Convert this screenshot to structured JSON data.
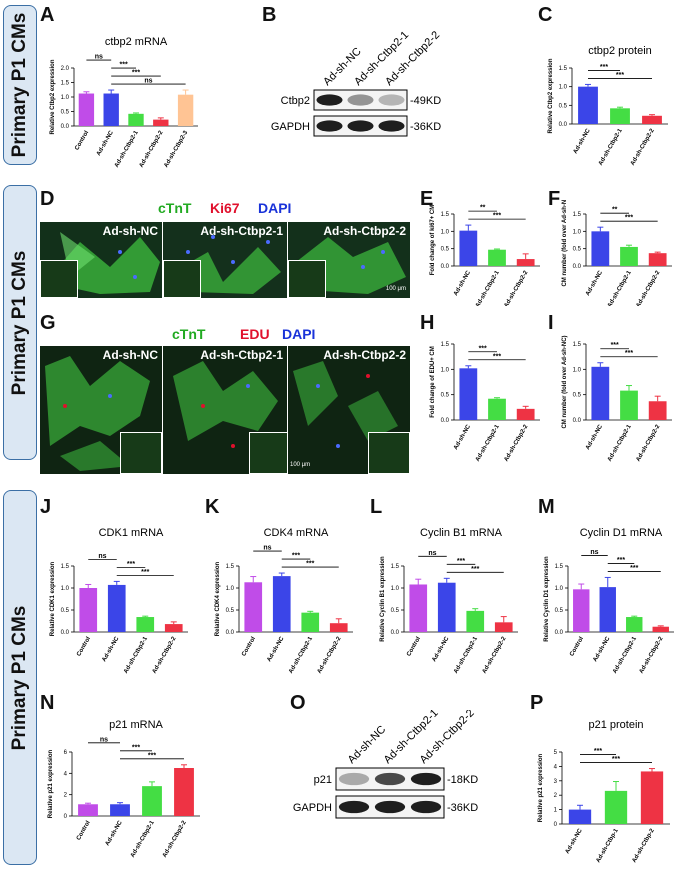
{
  "side_labels": [
    "Primary P1 CMs",
    "Primary P1 CMs",
    "Primary P1 CMs"
  ],
  "micrographs": {
    "D": {
      "legend": [
        {
          "text": "cTnT",
          "color": "#22aa22"
        },
        {
          "text": "Ki67",
          "color": "#e0102c"
        },
        {
          "text": "DAPI",
          "color": "#1a33d9"
        }
      ],
      "panels": [
        "Ad-sh-NC",
        "Ad-sh-Ctbp2-1",
        "Ad-sh-Ctbp2-2"
      ],
      "scale_bar": "100 μm"
    },
    "G": {
      "legend": [
        {
          "text": "cTnT",
          "color": "#22aa22"
        },
        {
          "text": "EDU",
          "color": "#e0102c"
        },
        {
          "text": "DAPI",
          "color": "#1a33d9"
        }
      ],
      "panels": [
        "Ad-sh-NC",
        "Ad-sh-Ctbp2-1",
        "Ad-sh-Ctbp2-2"
      ],
      "scale_bar": "100 μm"
    }
  },
  "blots": {
    "B": {
      "lanes": [
        "Ad-sh-NC",
        "Ad-sh-Ctbp2-1",
        "Ad-sh-Ctbp2-2"
      ],
      "rows": [
        {
          "protein": "Ctbp2",
          "size": "-49KD",
          "intensity": [
            1.0,
            0.45,
            0.3
          ]
        },
        {
          "protein": "GAPDH",
          "size": "-36KD",
          "intensity": [
            1.0,
            1.0,
            1.0
          ]
        }
      ]
    },
    "O": {
      "lanes": [
        "Ad-sh-NC",
        "Ad-sh-Ctbp2-1",
        "Ad-sh-Ctbp2-2"
      ],
      "rows": [
        {
          "protein": "p21",
          "size": "-18KD",
          "intensity": [
            0.35,
            0.8,
            1.0
          ]
        },
        {
          "protein": "GAPDH",
          "size": "-36KD",
          "intensity": [
            1.0,
            1.0,
            1.0
          ]
        }
      ]
    }
  },
  "chart_data": [
    {
      "panel": "A",
      "type": "bar",
      "title": "ctbp2 mRNA",
      "ylabel": "Relative Ctbp2 expression",
      "ylim": [
        0,
        2.0
      ],
      "yticks": [
        0,
        0.5,
        1.0,
        1.5,
        2.0
      ],
      "categories": [
        "Control",
        "Ad-sh-NC",
        "Ad-sh-Ctbp2-1",
        "Ad-sh-Ctbp2-2",
        "Ad-sh-Ctbp2-3"
      ],
      "values": [
        1.12,
        1.12,
        0.42,
        0.22,
        1.08
      ],
      "errors": [
        0.06,
        0.12,
        0.03,
        0.06,
        0.16
      ],
      "colors": [
        "#c04ce8",
        "#3b45e8",
        "#44dd44",
        "#ee3344",
        "#ffc494"
      ],
      "sig": [
        {
          "a": 0,
          "b": 1,
          "label": "ns"
        },
        {
          "a": 1,
          "b": 2,
          "label": "***"
        },
        {
          "a": 1,
          "b": 3,
          "label": "***"
        },
        {
          "a": 1,
          "b": 4,
          "label": "ns"
        }
      ]
    },
    {
      "panel": "C",
      "type": "bar",
      "title": "ctbp2 protein",
      "ylabel": "Relative Ctbp2 expression",
      "ylim": [
        0,
        1.5
      ],
      "yticks": [
        0,
        0.5,
        1.0,
        1.5
      ],
      "categories": [
        "Ad-sh-NC",
        "Ad-sh-Ctbp2-1",
        "Ad-sh-Ctbp2-2"
      ],
      "values": [
        1.0,
        0.42,
        0.22
      ],
      "errors": [
        0.06,
        0.03,
        0.03
      ],
      "colors": [
        "#3b45e8",
        "#44dd44",
        "#ee3344"
      ],
      "sig": [
        {
          "a": 0,
          "b": 1,
          "label": "***"
        },
        {
          "a": 0,
          "b": 2,
          "label": "***"
        }
      ]
    },
    {
      "panel": "E",
      "type": "bar",
      "title": "",
      "ylabel": "Fold change of ki67+ CM",
      "ylim": [
        0,
        1.5
      ],
      "yticks": [
        0,
        0.5,
        1.0,
        1.5
      ],
      "categories": [
        "Ad-sh-NC",
        "Ad-sh-Ctbp2-1",
        "Ad-sh-Ctbp2-2"
      ],
      "values": [
        1.02,
        0.47,
        0.2
      ],
      "errors": [
        0.16,
        0.02,
        0.15
      ],
      "colors": [
        "#3b45e8",
        "#44dd44",
        "#ee3344"
      ],
      "sig": [
        {
          "a": 0,
          "b": 1,
          "label": "**"
        },
        {
          "a": 0,
          "b": 2,
          "label": "***"
        }
      ]
    },
    {
      "panel": "F",
      "type": "bar",
      "title": "",
      "ylabel": "CM number (fold over Ad-sh-NC)",
      "ylim": [
        0,
        1.5
      ],
      "yticks": [
        0,
        0.5,
        1.0,
        1.5
      ],
      "categories": [
        "Ad-sh-NC",
        "Ad-sh-Ctbp2-1",
        "Ad-sh-Ctbp2-2"
      ],
      "values": [
        1.0,
        0.55,
        0.37
      ],
      "errors": [
        0.12,
        0.05,
        0.03
      ],
      "colors": [
        "#3b45e8",
        "#44dd44",
        "#ee3344"
      ],
      "sig": [
        {
          "a": 0,
          "b": 1,
          "label": "**"
        },
        {
          "a": 0,
          "b": 2,
          "label": "***"
        }
      ]
    },
    {
      "panel": "H",
      "type": "bar",
      "title": "",
      "ylabel": "Fold change of EDU+ CM",
      "ylim": [
        0,
        1.5
      ],
      "yticks": [
        0,
        0.5,
        1.0,
        1.5
      ],
      "categories": [
        "Ad-sh-NC",
        "Ad-sh-Ctbp2-1",
        "Ad-sh-Ctbp2-2"
      ],
      "values": [
        1.02,
        0.42,
        0.22
      ],
      "errors": [
        0.05,
        0.02,
        0.05
      ],
      "colors": [
        "#3b45e8",
        "#44dd44",
        "#ee3344"
      ],
      "sig": [
        {
          "a": 0,
          "b": 1,
          "label": "***"
        },
        {
          "a": 0,
          "b": 2,
          "label": "***"
        }
      ]
    },
    {
      "panel": "I",
      "type": "bar",
      "title": "",
      "ylabel": "CM number (fold over Ad-sh-NC)",
      "ylim": [
        0,
        1.5
      ],
      "yticks": [
        0,
        0.5,
        1.0,
        1.5
      ],
      "categories": [
        "Ad-sh-NC",
        "Ad-sh-Ctbp2-1",
        "Ad-sh-Ctbp2-2"
      ],
      "values": [
        1.05,
        0.58,
        0.37
      ],
      "errors": [
        0.08,
        0.1,
        0.1
      ],
      "colors": [
        "#3b45e8",
        "#44dd44",
        "#ee3344"
      ],
      "sig": [
        {
          "a": 0,
          "b": 1,
          "label": "***"
        },
        {
          "a": 0,
          "b": 2,
          "label": "***"
        }
      ]
    },
    {
      "panel": "J",
      "type": "bar",
      "title": "CDK1 mRNA",
      "ylabel": "Relative CDK1 expression",
      "ylim": [
        0,
        1.5
      ],
      "yticks": [
        0,
        0.5,
        1.0,
        1.5
      ],
      "categories": [
        "Control",
        "Ad-sh-NC",
        "Ad-sh-Ctbp2-1",
        "Ad-sh-Ctbp2-2"
      ],
      "values": [
        1.0,
        1.07,
        0.34,
        0.18
      ],
      "errors": [
        0.08,
        0.08,
        0.02,
        0.05
      ],
      "colors": [
        "#c04ce8",
        "#3b45e8",
        "#44dd44",
        "#ee3344"
      ],
      "sig": [
        {
          "a": 0,
          "b": 1,
          "label": "ns"
        },
        {
          "a": 1,
          "b": 2,
          "label": "***"
        },
        {
          "a": 1,
          "b": 3,
          "label": "***"
        }
      ]
    },
    {
      "panel": "K",
      "type": "bar",
      "title": "CDK4 mRNA",
      "ylabel": "Relative CDK4 expression",
      "ylim": [
        0,
        1.5
      ],
      "yticks": [
        0,
        0.5,
        1.0,
        1.5
      ],
      "categories": [
        "Control",
        "Ad-sh-NC",
        "Ad-sh-Ctbp2-1",
        "Ad-sh-Ctbp2-2"
      ],
      "values": [
        1.13,
        1.27,
        0.44,
        0.2
      ],
      "errors": [
        0.13,
        0.07,
        0.03,
        0.1
      ],
      "colors": [
        "#c04ce8",
        "#3b45e8",
        "#44dd44",
        "#ee3344"
      ],
      "sig": [
        {
          "a": 0,
          "b": 1,
          "label": "ns"
        },
        {
          "a": 1,
          "b": 2,
          "label": "***"
        },
        {
          "a": 1,
          "b": 3,
          "label": "***"
        }
      ]
    },
    {
      "panel": "L",
      "type": "bar",
      "title": "Cyclin B1 mRNA",
      "ylabel": "Relative Cyclin B1 expression",
      "ylim": [
        0,
        1.5
      ],
      "yticks": [
        0,
        0.5,
        1.0,
        1.5
      ],
      "categories": [
        "Control",
        "Ad-sh-NC",
        "Ad-sh-Ctbp2-1",
        "Ad-sh-Ctbp2-2"
      ],
      "values": [
        1.08,
        1.12,
        0.48,
        0.22
      ],
      "errors": [
        0.12,
        0.1,
        0.05,
        0.13
      ],
      "colors": [
        "#c04ce8",
        "#3b45e8",
        "#44dd44",
        "#ee3344"
      ],
      "sig": [
        {
          "a": 0,
          "b": 1,
          "label": "ns"
        },
        {
          "a": 1,
          "b": 2,
          "label": "***"
        },
        {
          "a": 1,
          "b": 3,
          "label": "***"
        }
      ]
    },
    {
      "panel": "M",
      "type": "bar",
      "title": "Cyclin D1 mRNA",
      "ylabel": "Relative Cyclin D1 expression",
      "ylim": [
        0,
        1.5
      ],
      "yticks": [
        0,
        0.5,
        1.0,
        1.5
      ],
      "categories": [
        "Control",
        "Ad-sh-NC",
        "Ad-sh-Ctbp2-1",
        "Ad-sh-Ctbp2-2"
      ],
      "values": [
        0.97,
        1.02,
        0.34,
        0.12
      ],
      "errors": [
        0.12,
        0.22,
        0.02,
        0.02
      ],
      "colors": [
        "#c04ce8",
        "#3b45e8",
        "#44dd44",
        "#ee3344"
      ],
      "sig": [
        {
          "a": 0,
          "b": 1,
          "label": "ns"
        },
        {
          "a": 1,
          "b": 2,
          "label": "***"
        },
        {
          "a": 1,
          "b": 3,
          "label": "***"
        }
      ]
    },
    {
      "panel": "N",
      "type": "bar",
      "title": "p21 mRNA",
      "ylabel": "Relative p21 expression",
      "ylim": [
        0,
        6
      ],
      "yticks": [
        0,
        2,
        4,
        6
      ],
      "categories": [
        "Control",
        "Ad-sh-NC",
        "Ad-sh-Ctbp2-1",
        "Ad-sh-Ctbp2-2"
      ],
      "values": [
        1.1,
        1.1,
        2.8,
        4.5
      ],
      "errors": [
        0.1,
        0.15,
        0.4,
        0.3
      ],
      "colors": [
        "#c04ce8",
        "#3b45e8",
        "#44dd44",
        "#ee3344"
      ],
      "sig": [
        {
          "a": 0,
          "b": 1,
          "label": "ns"
        },
        {
          "a": 1,
          "b": 2,
          "label": "***"
        },
        {
          "a": 1,
          "b": 3,
          "label": "***"
        }
      ]
    },
    {
      "panel": "P",
      "type": "bar",
      "title": "p21 protein",
      "ylabel": "Relative p21 expression",
      "ylim": [
        0,
        5
      ],
      "yticks": [
        0,
        1,
        2,
        3,
        4,
        5
      ],
      "categories": [
        "Ad-sh-NC",
        "Ad-sh-Ctbp-1",
        "Ad-sh-Ctbp-2"
      ],
      "values": [
        1.0,
        2.3,
        3.65
      ],
      "errors": [
        0.3,
        0.65,
        0.2
      ],
      "colors": [
        "#3b45e8",
        "#44dd44",
        "#ee3344"
      ],
      "sig": [
        {
          "a": 0,
          "b": 1,
          "label": "***"
        },
        {
          "a": 0,
          "b": 2,
          "label": "***"
        }
      ]
    }
  ]
}
